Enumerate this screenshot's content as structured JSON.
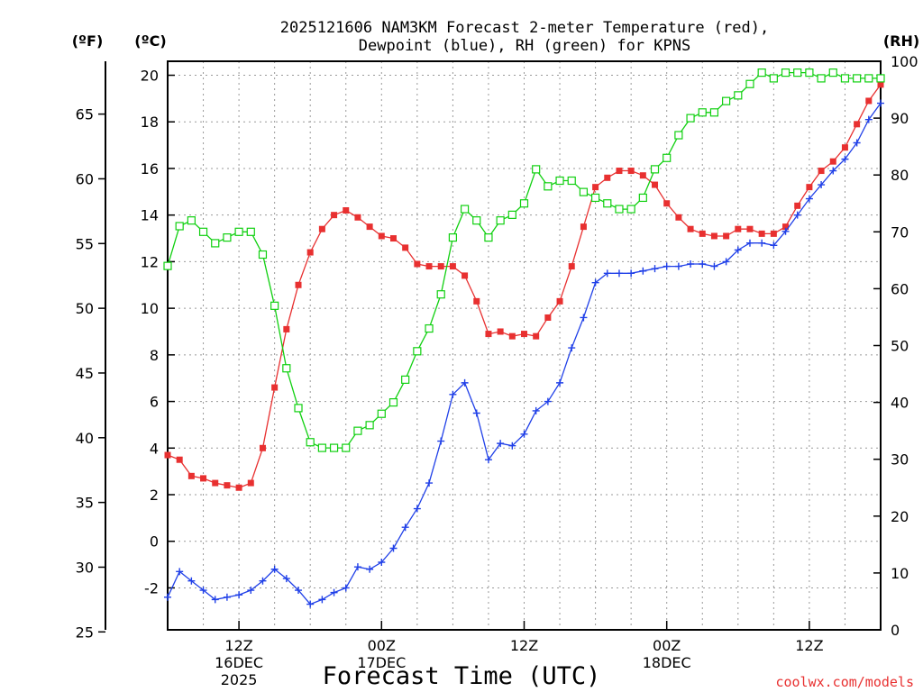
{
  "chart_data": {
    "type": "line",
    "title_line1": "2025121606 NAM3KM Forecast 2-meter Temperature (red),",
    "title_line2": "Dewpoint (blue), RH (green) for KPNS",
    "xlabel": "Forecast Time (UTC)",
    "credit": "coolwx.com/models",
    "units": {
      "fahrenheit": "(ºF)",
      "celsius": "(ºC)",
      "rh": "(RH)"
    },
    "x_range_hours": [
      6,
      66
    ],
    "x_ticks": [
      {
        "hour": 12,
        "line1": "12Z",
        "line2": "16DEC",
        "line3": "2025"
      },
      {
        "hour": 24,
        "line1": "00Z",
        "line2": "17DEC",
        "line3": ""
      },
      {
        "hour": 36,
        "line1": "12Z",
        "line2": "",
        "line3": ""
      },
      {
        "hour": 48,
        "line1": "00Z",
        "line2": "18DEC",
        "line3": ""
      },
      {
        "hour": 60,
        "line1": "12Z",
        "line2": "",
        "line3": ""
      }
    ],
    "y_celsius_range": [
      -3.8,
      20.6
    ],
    "y_celsius_ticks": [
      "-2",
      "0",
      "2",
      "4",
      "6",
      "8",
      "10",
      "12",
      "14",
      "16",
      "18",
      "20"
    ],
    "y_fahrenheit_ticks": [
      "25",
      "30",
      "35",
      "40",
      "45",
      "50",
      "55",
      "60",
      "65"
    ],
    "y_rh_range": [
      0,
      100
    ],
    "y_rh_ticks": [
      "0",
      "10",
      "20",
      "30",
      "40",
      "50",
      "60",
      "70",
      "80",
      "90",
      "100"
    ],
    "series": [
      {
        "name": "2-meter Temperature",
        "unit": "C",
        "color": "#e83030",
        "marker": "filled-square",
        "values": [
          3.7,
          3.5,
          2.8,
          2.7,
          2.5,
          2.4,
          2.3,
          2.5,
          4.0,
          6.6,
          9.1,
          11.0,
          12.4,
          13.4,
          14.0,
          14.2,
          13.9,
          13.5,
          13.1,
          13.0,
          12.6,
          11.9,
          11.8,
          11.8,
          11.8,
          11.4,
          10.3,
          8.9,
          9.0,
          8.8,
          8.9,
          8.8,
          9.6,
          10.3,
          11.8,
          13.5,
          15.2,
          15.6,
          15.9,
          15.9,
          15.7,
          15.3,
          14.5,
          13.9,
          13.4,
          13.2,
          13.1,
          13.1,
          13.4,
          13.4,
          13.2,
          13.2,
          13.5,
          14.4,
          15.2,
          15.9,
          16.3,
          16.9,
          17.9,
          18.9,
          19.6
        ]
      },
      {
        "name": "Dewpoint",
        "unit": "C",
        "color": "#2040e8",
        "marker": "plus",
        "values": [
          -2.4,
          -1.3,
          -1.7,
          -2.1,
          -2.5,
          -2.4,
          -2.3,
          -2.1,
          -1.7,
          -1.2,
          -1.6,
          -2.1,
          -2.7,
          -2.5,
          -2.2,
          -2.0,
          -1.1,
          -1.2,
          -0.9,
          -0.3,
          0.6,
          1.4,
          2.5,
          4.3,
          6.3,
          6.8,
          5.5,
          3.5,
          4.2,
          4.1,
          4.6,
          5.6,
          6.0,
          6.8,
          8.3,
          9.6,
          11.1,
          11.5,
          11.5,
          11.5,
          11.6,
          11.7,
          11.8,
          11.8,
          11.9,
          11.9,
          11.8,
          12.0,
          12.5,
          12.8,
          12.8,
          12.7,
          13.3,
          14.0,
          14.7,
          15.3,
          15.9,
          16.4,
          17.1,
          18.1,
          18.8
        ]
      },
      {
        "name": "Relative Humidity",
        "unit": "%",
        "color": "#10d010",
        "marker": "open-square",
        "values": [
          64,
          71,
          72,
          70,
          68,
          69,
          70,
          70,
          66,
          57,
          46,
          39,
          33,
          32,
          32,
          32,
          35,
          36,
          38,
          40,
          44,
          49,
          53,
          59,
          69,
          74,
          72,
          69,
          72,
          73,
          75,
          81,
          78,
          79,
          79,
          77,
          76,
          75,
          74,
          74,
          76,
          81,
          83,
          87,
          90,
          91,
          91,
          93,
          94,
          96,
          98,
          97,
          98,
          98,
          98,
          97,
          98,
          97,
          97,
          97,
          97
        ]
      }
    ]
  }
}
